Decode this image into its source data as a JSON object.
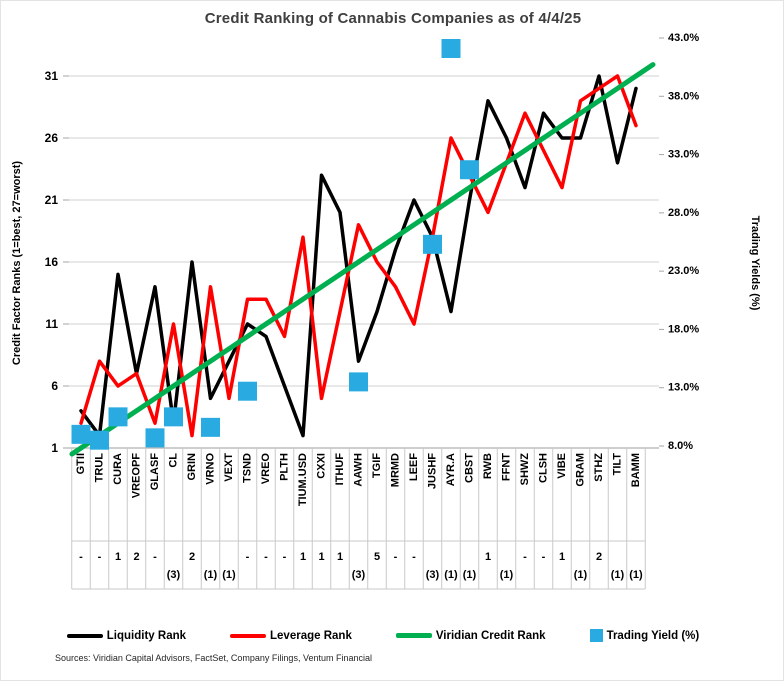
{
  "title": "Credit Ranking of Cannabis Companies as of 4/4/25",
  "left_axis_label": "Credit Factor Ranks (1=best, 27=worst)",
  "right_axis_label": "Trading Yields (%)",
  "sources": "Sources: Viridian Capital Advisors, FactSet, Company Filings, Ventum Financial",
  "legend": [
    {
      "label": "Liquidity Rank",
      "color": "#000000",
      "swatch": "line"
    },
    {
      "label": "Leverage Rank",
      "color": "#FF0000",
      "swatch": "line"
    },
    {
      "label": "Viridian Credit Rank",
      "color": "#00B050",
      "swatch": "line"
    },
    {
      "label": "Trading Yield (%)",
      "color": "#29ABE2",
      "swatch": "square"
    }
  ],
  "chart_data": {
    "type": "line",
    "title": "Credit Ranking of Cannabis Companies as of 4/4/25",
    "grid": true,
    "left_axis": {
      "label": "Credit Factor Ranks (1=best, 27=worst)",
      "ticks": [
        1,
        6,
        11,
        16,
        21,
        26,
        31
      ],
      "range": [
        1,
        31
      ]
    },
    "right_axis": {
      "label": "Trading Yields (%)",
      "range": [
        8,
        43
      ],
      "ticks": [
        {
          "label": "8.0%",
          "value": 8
        },
        {
          "label": "13.0%",
          "value": 13
        },
        {
          "label": "18.0%",
          "value": 18
        },
        {
          "label": "23.0%",
          "value": 23
        },
        {
          "label": "28.0%",
          "value": 28
        },
        {
          "label": "33.0%",
          "value": 33
        },
        {
          "label": "38.0%",
          "value": 38
        },
        {
          "label": "43.0%",
          "value": 43
        }
      ]
    },
    "categories": [
      {
        "ticker": "GTII",
        "change": "-"
      },
      {
        "ticker": "TRUL",
        "change": "-"
      },
      {
        "ticker": "CURA",
        "change": "1"
      },
      {
        "ticker": "VREOPF",
        "change": "2"
      },
      {
        "ticker": "GLASF",
        "change": "-"
      },
      {
        "ticker": "CL",
        "change": "(3)"
      },
      {
        "ticker": "GRIN",
        "change": "2"
      },
      {
        "ticker": "VRNO",
        "change": "(1)"
      },
      {
        "ticker": "VEXT",
        "change": "(1)"
      },
      {
        "ticker": "TSND",
        "change": "-"
      },
      {
        "ticker": "VREO",
        "change": "-"
      },
      {
        "ticker": "PLTH",
        "change": "-"
      },
      {
        "ticker": "TIUM.USD",
        "change": "1"
      },
      {
        "ticker": "CXXI",
        "change": "1"
      },
      {
        "ticker": "ITHUF",
        "change": "1"
      },
      {
        "ticker": "AAWH",
        "change": "(3)"
      },
      {
        "ticker": "TGIF",
        "change": "5"
      },
      {
        "ticker": "MRMD",
        "change": "-"
      },
      {
        "ticker": "LEEF",
        "change": "-"
      },
      {
        "ticker": "JUSHF",
        "change": "(3)"
      },
      {
        "ticker": "AYR.A",
        "change": "(1)"
      },
      {
        "ticker": "CBST",
        "change": "(1)"
      },
      {
        "ticker": "RWB",
        "change": "1"
      },
      {
        "ticker": "FFNT",
        "change": "(1)"
      },
      {
        "ticker": "SHWZ",
        "change": "-"
      },
      {
        "ticker": "CLSH",
        "change": "-"
      },
      {
        "ticker": "VIBE",
        "change": "1"
      },
      {
        "ticker": "GRAM",
        "change": "(1)"
      },
      {
        "ticker": "STHZ",
        "change": "2"
      },
      {
        "ticker": "TILT",
        "change": "(1)"
      },
      {
        "ticker": "BAMM",
        "change": "(1)"
      }
    ],
    "series": [
      {
        "name": "Liquidity Rank",
        "color": "#000000",
        "values": [
          4,
          2,
          15,
          7,
          14,
          3,
          16,
          5,
          8,
          11,
          10,
          6,
          2,
          23,
          20,
          8,
          12,
          17,
          21,
          18,
          12,
          21,
          29,
          26,
          22,
          28,
          26,
          26,
          31,
          24,
          30
        ]
      },
      {
        "name": "Leverage Rank",
        "color": "#FF0000",
        "values": [
          3,
          8,
          6,
          7,
          3,
          11,
          2,
          14,
          5,
          13,
          13,
          10,
          18,
          5,
          12,
          19,
          16,
          14,
          11,
          18,
          26,
          23,
          20,
          24,
          28,
          25,
          22,
          29,
          30,
          31,
          27
        ]
      },
      {
        "name": "Viridian Credit Rank",
        "color": "#00B050",
        "extend_to_edges": true,
        "values": [
          1,
          2,
          3,
          4,
          5,
          6,
          7,
          8,
          9,
          10,
          11,
          12,
          13,
          14,
          15,
          16,
          17,
          18,
          19,
          20,
          21,
          22,
          23,
          24,
          25,
          26,
          27,
          28,
          29,
          30,
          31
        ]
      }
    ],
    "scatter": {
      "name": "Trading Yield (%)",
      "color": "#29ABE2",
      "points": [
        {
          "ticker": "GTII",
          "value": 9.0
        },
        {
          "ticker": "TRUL",
          "value": 8.5
        },
        {
          "ticker": "CURA",
          "value": 10.5
        },
        {
          "ticker": "GLASF",
          "value": 8.7
        },
        {
          "ticker": "CL",
          "value": 10.5
        },
        {
          "ticker": "VRNO",
          "value": 9.6
        },
        {
          "ticker": "TSND",
          "value": 12.7
        },
        {
          "ticker": "AAWH",
          "value": 13.5
        },
        {
          "ticker": "JUSHF",
          "value": 25.3
        },
        {
          "ticker": "AYR.A",
          "value": 42.1
        },
        {
          "ticker": "CBST",
          "value": 31.7
        }
      ]
    }
  }
}
